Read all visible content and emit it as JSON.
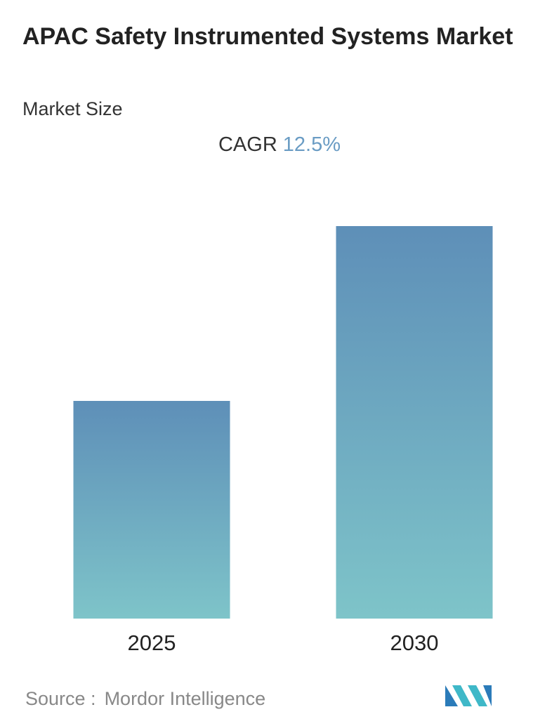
{
  "chart_data": {
    "type": "bar",
    "title": "APAC Safety Instrumented Systems Market",
    "subtitle": "Market Size",
    "cagr_label": "CAGR",
    "cagr": "12.5%",
    "categories": [
      "2025",
      "2030"
    ],
    "values": [
      310,
      559
    ],
    "gradient": [
      "#5e8fb8",
      "#7ec4c9"
    ],
    "source_label": "Source :",
    "source": "Mordor Intelligence"
  }
}
